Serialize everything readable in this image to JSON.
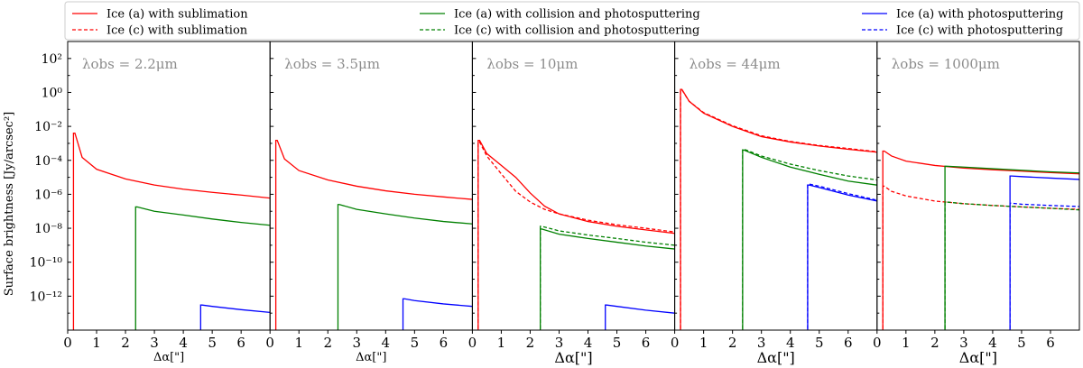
{
  "figure": {
    "ylabel": "Surface brightness [Jy/arcsec²]",
    "xlabel": "Δα[\"]"
  },
  "legend": [
    {
      "label": "Ice (a) with sublimation",
      "color": "#ff0000",
      "dash": false
    },
    {
      "label": "Ice (c) with sublimation",
      "color": "#ff0000",
      "dash": true
    },
    {
      "label": "Ice (a) with collision and photosputtering",
      "color": "#008000",
      "dash": false
    },
    {
      "label": "Ice (c) with collision and photosputtering",
      "color": "#008000",
      "dash": true
    },
    {
      "label": "Ice (a) with photosputtering",
      "color": "#0000ff",
      "dash": false
    },
    {
      "label": "Ice (c) with photosputtering",
      "color": "#0000ff",
      "dash": true
    }
  ],
  "chart_data": [
    {
      "type": "line",
      "title": "λobs = 2.2μm",
      "xlim": [
        0,
        7
      ],
      "ylim": [
        1e-14,
        1000.0
      ],
      "yscale": "log",
      "xticks": [
        "0",
        "1",
        "2",
        "3",
        "4",
        "5",
        "6"
      ],
      "yticks": [
        "10²",
        "10⁰",
        "10⁻²",
        "10⁻⁴",
        "10⁻⁶",
        "10⁻⁸",
        "10⁻¹⁰",
        "10⁻¹²"
      ],
      "series": [
        {
          "name": "Ice (a) with sublimation",
          "color": "#ff0000",
          "dash": false,
          "start": 0.2,
          "x": [
            0.25,
            0.5,
            1,
            2,
            3,
            4,
            5,
            6,
            7
          ],
          "y": [
            0.004,
            0.00015,
            3e-05,
            8e-06,
            3.5e-06,
            2e-06,
            1.3e-06,
            9e-07,
            6e-07
          ]
        },
        {
          "name": "Ice (a) with collision and photosputtering",
          "color": "#008000",
          "dash": false,
          "start": 2.35,
          "x": [
            2.4,
            3,
            4,
            5,
            6,
            7
          ],
          "y": [
            1.8e-07,
            1e-07,
            6e-08,
            3.5e-08,
            2.2e-08,
            1.5e-08
          ]
        },
        {
          "name": "Ice (a) with photosputtering",
          "color": "#0000ff",
          "dash": false,
          "start": 4.6,
          "x": [
            4.65,
            5,
            6,
            7
          ],
          "y": [
            3e-13,
            2.5e-13,
            1.6e-13,
            1.1e-13
          ]
        }
      ]
    },
    {
      "type": "line",
      "title": "λobs = 3.5μm",
      "xlim": [
        0,
        7
      ],
      "ylim": [
        1e-14,
        1000.0
      ],
      "yscale": "log",
      "xticks": [
        "0",
        "1",
        "2",
        "3",
        "4",
        "5",
        "6"
      ],
      "series": [
        {
          "name": "Ice (a) with sublimation",
          "color": "#ff0000",
          "dash": false,
          "start": 0.2,
          "x": [
            0.25,
            0.5,
            1,
            2,
            3,
            4,
            5,
            6,
            7
          ],
          "y": [
            0.0015,
            0.00012,
            2.5e-05,
            7e-06,
            3e-06,
            1.6e-06,
            1e-06,
            7e-07,
            5e-07
          ]
        },
        {
          "name": "Ice (a) with collision and photosputtering",
          "color": "#008000",
          "dash": false,
          "start": 2.35,
          "x": [
            2.4,
            3,
            4,
            5,
            6,
            7
          ],
          "y": [
            2.5e-07,
            1.3e-07,
            7e-08,
            4e-08,
            2.5e-08,
            1.8e-08
          ]
        },
        {
          "name": "Ice (a) with photosputtering",
          "color": "#0000ff",
          "dash": false,
          "start": 4.6,
          "x": [
            4.65,
            5,
            6,
            7
          ],
          "y": [
            7e-13,
            5.5e-13,
            3.5e-13,
            2.5e-13
          ]
        }
      ]
    },
    {
      "type": "line",
      "title": "λobs = 10μm",
      "xlim": [
        0,
        7
      ],
      "ylim": [
        1e-14,
        1000.0
      ],
      "yscale": "log",
      "xticks": [
        "0",
        "1",
        "2",
        "3",
        "4",
        "5",
        "6"
      ],
      "series": [
        {
          "name": "Ice (a) with sublimation",
          "color": "#ff0000",
          "dash": false,
          "start": 0.2,
          "x": [
            0.25,
            0.5,
            1,
            1.5,
            2,
            2.5,
            3,
            4,
            5,
            6,
            7
          ],
          "y": [
            0.0015,
            0.00025,
            5e-05,
            1e-05,
            1.2e-06,
            2e-07,
            7e-08,
            2.5e-08,
            1.3e-08,
            8e-09,
            5e-09
          ]
        },
        {
          "name": "Ice (c) with sublimation",
          "color": "#ff0000",
          "dash": true,
          "start": 0.2,
          "x": [
            0.25,
            0.5,
            1,
            1.5,
            2,
            2.5,
            3,
            4,
            5,
            6,
            7
          ],
          "y": [
            0.0012,
            0.00018,
            1.6e-05,
            1.5e-06,
            3.5e-07,
            1.3e-07,
            7e-08,
            3e-08,
            1.6e-08,
            1e-08,
            6e-09
          ]
        },
        {
          "name": "Ice (a) with collision and photosputtering",
          "color": "#008000",
          "dash": false,
          "start": 2.35,
          "x": [
            2.4,
            3,
            4,
            5,
            6,
            7
          ],
          "y": [
            9e-09,
            4.5e-09,
            2.5e-09,
            1.5e-09,
            9e-10,
            6e-10
          ]
        },
        {
          "name": "Ice (c) with collision and photosputtering",
          "color": "#008000",
          "dash": true,
          "start": 2.35,
          "x": [
            2.4,
            3,
            4,
            5,
            6,
            7
          ],
          "y": [
            1.3e-08,
            7e-09,
            4e-09,
            2.5e-09,
            1.5e-09,
            1e-09
          ]
        },
        {
          "name": "Ice (a) with photosputtering",
          "color": "#0000ff",
          "dash": false,
          "start": 4.6,
          "x": [
            4.65,
            5,
            6,
            7
          ],
          "y": [
            3e-13,
            2.5e-13,
            1.5e-13,
            1e-13
          ]
        }
      ]
    },
    {
      "type": "line",
      "title": "λobs = 44μm",
      "xlim": [
        0,
        7
      ],
      "ylim": [
        1e-14,
        1000.0
      ],
      "yscale": "log",
      "xticks": [
        "0",
        "1",
        "2",
        "3",
        "4",
        "5",
        "6"
      ],
      "series": [
        {
          "name": "Ice (a) with sublimation",
          "color": "#ff0000",
          "dash": false,
          "start": 0.2,
          "x": [
            0.25,
            0.5,
            1,
            2,
            3,
            4,
            5,
            6,
            7
          ],
          "y": [
            1.5,
            0.3,
            0.06,
            0.01,
            0.0025,
            0.0012,
            0.0007,
            0.00045,
            0.0003
          ]
        },
        {
          "name": "Ice (c) with sublimation",
          "color": "#ff0000",
          "dash": true,
          "start": 0.2,
          "x": [
            0.25,
            0.5,
            1,
            2,
            3,
            4,
            5,
            6,
            7
          ],
          "y": [
            1.4,
            0.3,
            0.065,
            0.011,
            0.0028,
            0.0013,
            0.00075,
            0.0005,
            0.00032
          ]
        },
        {
          "name": "Ice (a) with collision and photosputtering",
          "color": "#008000",
          "dash": false,
          "start": 2.35,
          "x": [
            2.4,
            3,
            4,
            5,
            6,
            7
          ],
          "y": [
            0.0004,
            0.00015,
            4e-05,
            1.5e-05,
            6e-06,
            3.5e-06
          ]
        },
        {
          "name": "Ice (c) with collision and photosputtering",
          "color": "#008000",
          "dash": true,
          "start": 2.35,
          "x": [
            2.4,
            3,
            4,
            5,
            6,
            7
          ],
          "y": [
            0.00045,
            0.00018,
            6e-05,
            2.5e-05,
            1.2e-05,
            7e-06
          ]
        },
        {
          "name": "Ice (a) with photosputtering",
          "color": "#0000ff",
          "dash": false,
          "start": 4.6,
          "x": [
            4.65,
            5,
            6,
            7
          ],
          "y": [
            3.5e-06,
            2.5e-06,
            9e-07,
            4e-07
          ]
        },
        {
          "name": "Ice (c) with photosputtering",
          "color": "#0000ff",
          "dash": true,
          "start": 4.6,
          "x": [
            4.65,
            5,
            6,
            7
          ],
          "y": [
            4e-06,
            3e-06,
            1.1e-06,
            4.5e-07
          ]
        }
      ]
    },
    {
      "type": "line",
      "title": "λobs = 1000μm",
      "xlim": [
        0,
        7
      ],
      "ylim": [
        1e-14,
        1000.0
      ],
      "yscale": "log",
      "xticks": [
        "0",
        "1",
        "2",
        "3",
        "4",
        "5",
        "6"
      ],
      "series": [
        {
          "name": "Ice (a) with sublimation",
          "color": "#ff0000",
          "dash": false,
          "start": 0.2,
          "x": [
            0.25,
            0.5,
            1,
            2,
            3,
            4,
            5,
            6,
            7
          ],
          "y": [
            0.00035,
            0.00018,
            9e-05,
            5e-05,
            3.5e-05,
            2.8e-05,
            2.3e-05,
            1.9e-05,
            1.6e-05
          ]
        },
        {
          "name": "Ice (c) with sublimation",
          "color": "#ff0000",
          "dash": true,
          "start": 0.2,
          "x": [
            0.25,
            0.5,
            1,
            2,
            3,
            4,
            5,
            6,
            7
          ],
          "y": [
            3e-06,
            1.5e-06,
            8e-07,
            4e-07,
            2.8e-07,
            2.2e-07,
            1.8e-07,
            1.5e-07,
            1.3e-07
          ]
        },
        {
          "name": "Ice (a) with collision and photosputtering",
          "color": "#008000",
          "dash": false,
          "start": 2.35,
          "x": [
            2.4,
            3,
            4,
            5,
            6,
            7
          ],
          "y": [
            4.5e-05,
            4e-05,
            3.2e-05,
            2.6e-05,
            2.1e-05,
            1.8e-05
          ]
        },
        {
          "name": "Ice (c) with collision and photosputtering",
          "color": "#008000",
          "dash": true,
          "start": 2.35,
          "x": [
            2.4,
            3,
            4,
            5,
            6,
            7
          ],
          "y": [
            3.5e-07,
            2.8e-07,
            2.2e-07,
            1.8e-07,
            1.5e-07,
            1.2e-07
          ]
        },
        {
          "name": "Ice (a) with photosputtering",
          "color": "#0000ff",
          "dash": false,
          "start": 4.6,
          "x": [
            4.65,
            5,
            6,
            7
          ],
          "y": [
            1.2e-05,
            1.1e-05,
            9e-06,
            7.5e-06
          ]
        },
        {
          "name": "Ice (c) with photosputtering",
          "color": "#0000ff",
          "dash": true,
          "start": 4.6,
          "x": [
            4.65,
            5,
            6,
            7
          ],
          "y": [
            3e-07,
            2.6e-07,
            2.2e-07,
            1.9e-07
          ]
        }
      ]
    }
  ]
}
